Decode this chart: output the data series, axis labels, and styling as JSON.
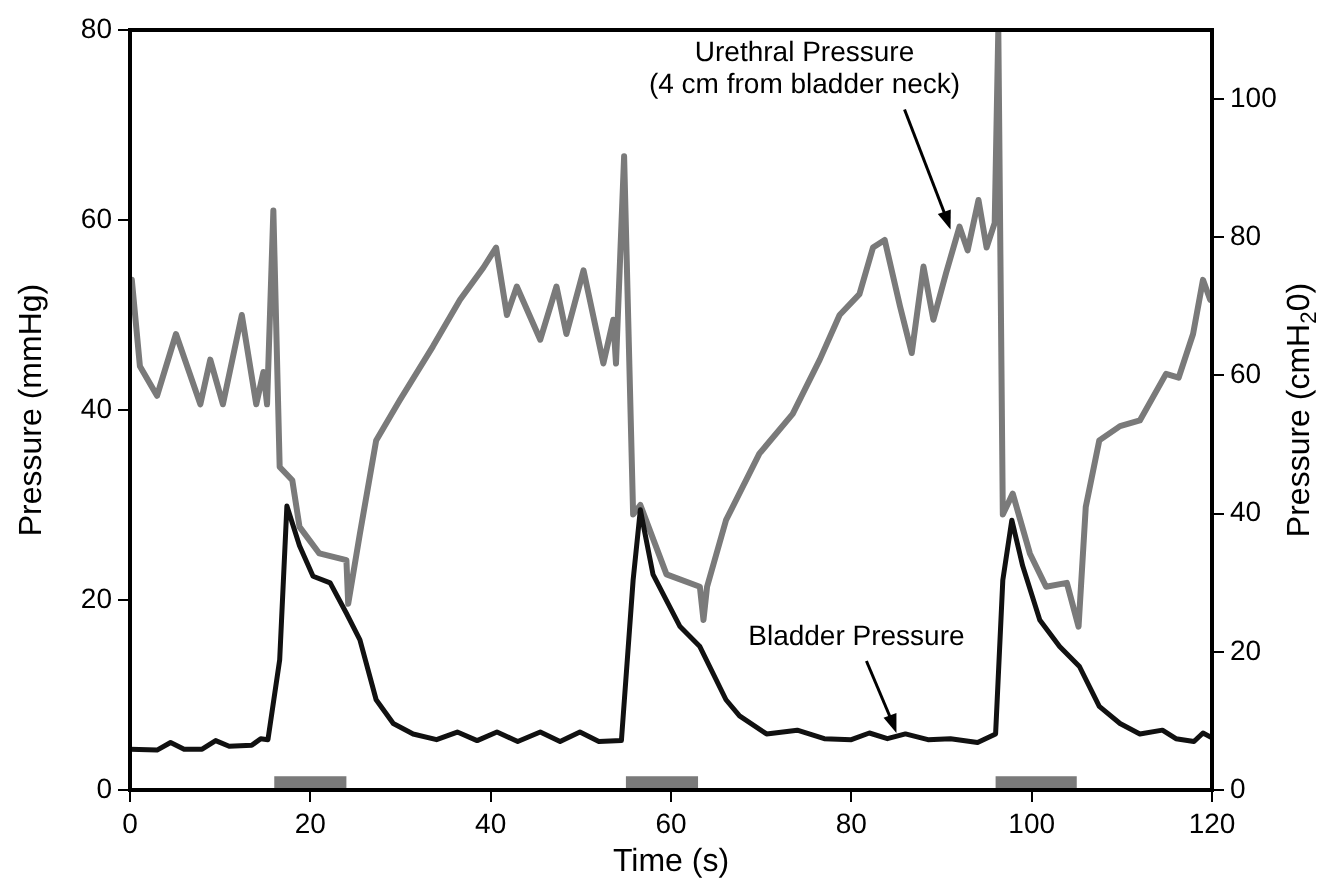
{
  "chart_data": {
    "type": "line",
    "xlabel": "Time (s)",
    "ylabel": "Pressure (mmHg)",
    "y2label": "Pressure (cmH$_{2}$0)",
    "xlim": [
      0,
      120
    ],
    "xticks": [
      0,
      20,
      40,
      60,
      80,
      100,
      120
    ],
    "ylim": [
      0,
      80
    ],
    "yticks": [
      0,
      20,
      40,
      60,
      80
    ],
    "y2lim": [
      0,
      110
    ],
    "y2ticks": [
      0,
      20,
      40,
      60,
      80,
      100
    ],
    "grid": false,
    "legend": false,
    "marker": "none",
    "line_style": "solid",
    "series": [
      {
        "color": "#7a7a7a",
        "x": [
          0.2,
          1.1,
          3,
          5.1,
          7.8,
          8.9,
          10.3,
          12.4,
          14,
          14.8,
          15.2,
          15.9,
          16.6,
          18,
          18.8,
          21,
          24,
          24.2,
          25.5,
          27.3,
          29.9,
          33.6,
          36.6,
          39.2,
          40.6,
          41.8,
          42.9,
          45.5,
          47.3,
          48.4,
          50.3,
          52.5,
          53.6,
          53.9,
          54.8,
          55.8,
          56.6,
          59.5,
          63.2,
          63.6,
          64,
          66.1,
          69.8,
          73.5,
          76.5,
          78.7,
          80.9,
          82.4,
          83.7,
          85.4,
          86.7,
          88,
          89.1,
          90.5,
          92,
          92.9,
          94.1,
          95,
          95.9,
          96.3,
          96.8,
          97.9,
          99.8,
          101.6,
          103.9,
          105.2,
          106,
          107.5,
          109.8,
          112,
          114.9,
          116.3,
          117.9,
          119,
          119.8
        ],
        "values": [
          53.7,
          44.6,
          41.5,
          48,
          40.6,
          45.3,
          40.6,
          50,
          40.6,
          44,
          40.6,
          61,
          34,
          32.6,
          27.7,
          24.9,
          24.2,
          19.6,
          27,
          36.8,
          41,
          46.7,
          51.6,
          55,
          57.1,
          50,
          53,
          47.4,
          53,
          48,
          54.7,
          44.9,
          49.5,
          44.9,
          66.7,
          29,
          30,
          22.7,
          21.4,
          17.9,
          21.4,
          28.4,
          35.4,
          39.6,
          45.3,
          50,
          52.2,
          57.1,
          57.9,
          50.9,
          46,
          55.1,
          49.5,
          54.4,
          59.3,
          56.8,
          62.1,
          57.1,
          59.7,
          80,
          29,
          31.2,
          24.9,
          21.4,
          21.8,
          17.2,
          29.8,
          36.8,
          38.3,
          38.9,
          43.8,
          43.4,
          48,
          53.7,
          51.6
        ]
      },
      {
        "color": "#111111",
        "x": [
          0,
          3,
          4.5,
          6,
          8,
          9.5,
          11,
          13.5,
          14.5,
          15.3,
          16.6,
          17.4,
          18.8,
          20.3,
          22.2,
          24,
          25.5,
          27.3,
          29.2,
          31.4,
          34,
          36.3,
          38.5,
          40.7,
          43,
          45.5,
          47.7,
          49.9,
          52,
          54.5,
          55.8,
          56.6,
          58,
          61,
          63.2,
          66.1,
          67.6,
          70.6,
          74,
          77,
          80,
          82,
          84,
          86,
          88.5,
          91,
          94,
          96,
          96.8,
          97.8,
          99,
          100.9,
          103.1,
          105.3,
          107.5,
          109.8,
          112,
          114.5,
          116,
          118,
          119,
          120
        ],
        "values": [
          4.3,
          4.2,
          5,
          4.3,
          4.3,
          5.2,
          4.6,
          4.7,
          5.4,
          5.3,
          13.7,
          29.9,
          25.7,
          22.5,
          21.8,
          18.6,
          15.8,
          9.5,
          7,
          5.9,
          5.3,
          6.1,
          5.2,
          6.1,
          5.1,
          6.1,
          5.1,
          6.1,
          5.1,
          5.2,
          22.1,
          29.5,
          22.7,
          17.2,
          15.1,
          9.5,
          7.8,
          5.9,
          6.3,
          5.4,
          5.3,
          6,
          5.4,
          5.9,
          5.3,
          5.4,
          5,
          5.9,
          22.1,
          28.4,
          23.6,
          17.9,
          15.1,
          13,
          8.8,
          7,
          5.9,
          6.3,
          5.4,
          5.1,
          6,
          5.5
        ]
      },
      {
        "color": "#7a7a7a",
        "x": [
          16,
          24,
          40,
          55,
          63,
          80,
          96,
          105
        ],
        "values": [
          0.7,
          0.7,
          null,
          0.7,
          0.7,
          null,
          0.7,
          0.7
        ]
      }
    ],
    "annotations": [
      {
        "text": "Urethral Pressure\n(4 cm from bladder neck)",
        "x": 91,
        "y": 59
      },
      {
        "text": "Bladder Pressure",
        "x": 85,
        "y": 6
      }
    ]
  }
}
